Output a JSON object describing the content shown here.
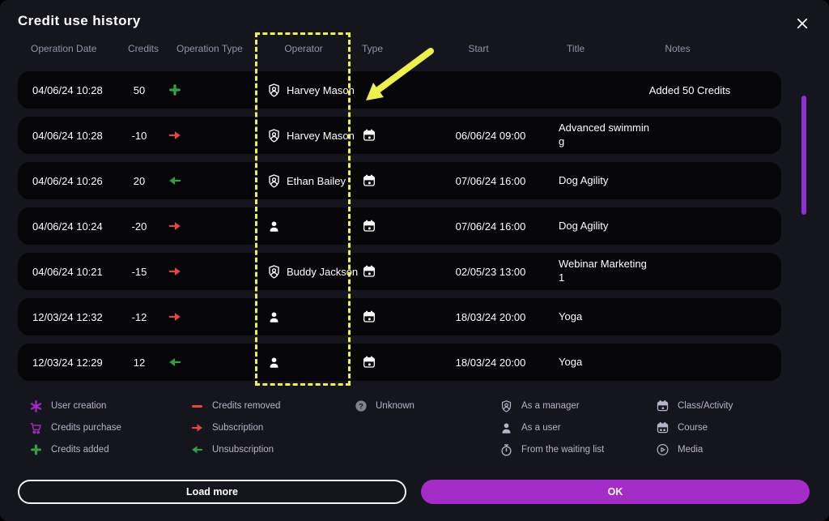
{
  "modal": {
    "title": "Credit use history",
    "close_icon": "close"
  },
  "table": {
    "headers": {
      "date": "Operation Date",
      "credits": "Credits",
      "operation_type": "Operation Type",
      "operator": "Operator",
      "type": "Type",
      "start": "Start",
      "title": "Title",
      "notes": "Notes"
    },
    "rows": [
      {
        "date": "04/06/24 10:28",
        "credits": "50",
        "op_icon": "credits-added",
        "operator_icon": "as-manager",
        "operator": "Harvey Mason",
        "type_icon": "",
        "start": "",
        "title": "",
        "notes": "Added 50 Credits"
      },
      {
        "date": "04/06/24 10:28",
        "credits": "-10",
        "op_icon": "subscription",
        "operator_icon": "as-manager",
        "operator": "Harvey Mason",
        "type_icon": "class-activity",
        "start": "06/06/24 09:00",
        "title": "Advanced swimming",
        "notes": ""
      },
      {
        "date": "04/06/24 10:26",
        "credits": "20",
        "op_icon": "unsubscription",
        "operator_icon": "as-manager",
        "operator": "Ethan Bailey",
        "type_icon": "class-activity",
        "start": "07/06/24 16:00",
        "title": "Dog Agility",
        "notes": ""
      },
      {
        "date": "04/06/24 10:24",
        "credits": "-20",
        "op_icon": "subscription",
        "operator_icon": "as-user",
        "operator": "",
        "type_icon": "class-activity",
        "start": "07/06/24 16:00",
        "title": "Dog Agility",
        "notes": ""
      },
      {
        "date": "04/06/24 10:21",
        "credits": "-15",
        "op_icon": "subscription",
        "operator_icon": "as-manager",
        "operator": "Buddy Jackson",
        "type_icon": "class-activity",
        "start": "02/05/23 13:00",
        "title": "Webinar Marketing 1",
        "notes": ""
      },
      {
        "date": "12/03/24 12:32",
        "credits": "-12",
        "op_icon": "subscription",
        "operator_icon": "as-user",
        "operator": "",
        "type_icon": "class-activity",
        "start": "18/03/24 20:00",
        "title": "Yoga",
        "notes": ""
      },
      {
        "date": "12/03/24 12:29",
        "credits": "12",
        "op_icon": "unsubscription",
        "operator_icon": "as-user",
        "operator": "",
        "type_icon": "class-activity",
        "start": "18/03/24 20:00",
        "title": "Yoga",
        "notes": ""
      }
    ]
  },
  "legend": {
    "groups": [
      {
        "items": [
          {
            "icon": "user-creation",
            "label": "User creation"
          },
          {
            "icon": "credits-purchase",
            "label": "Credits purchase"
          },
          {
            "icon": "credits-added",
            "label": "Credits added"
          }
        ]
      },
      {
        "items": [
          {
            "icon": "credits-removed",
            "label": "Credits removed"
          },
          {
            "icon": "subscription",
            "label": "Subscription"
          },
          {
            "icon": "unsubscription",
            "label": "Unsubscription"
          }
        ]
      },
      {
        "items": [
          {
            "icon": "unknown",
            "label": "Unknown"
          }
        ]
      },
      {
        "items": [
          {
            "icon": "as-manager",
            "label": "As a manager"
          },
          {
            "icon": "as-user",
            "label": "As a user"
          },
          {
            "icon": "waiting-list",
            "label": "From the waiting list"
          }
        ]
      },
      {
        "items": [
          {
            "icon": "class-activity",
            "label": "Class/Activity"
          },
          {
            "icon": "course",
            "label": "Course"
          },
          {
            "icon": "media",
            "label": "Media"
          }
        ]
      }
    ]
  },
  "buttons": {
    "load_more": "Load more",
    "ok": "OK"
  },
  "annotation": {
    "type": "dashed-box-and-arrow",
    "target": "Operator column",
    "color": "#eef04d"
  },
  "colors": {
    "background": "#15151e",
    "row_background": "#060609",
    "green": "#2fa144",
    "red": "#e8463b",
    "purple": "#a42cc4",
    "lavender": "#b7b3c8",
    "annotation_yellow": "#eef04d",
    "scrollbar_purple": "#9030d6",
    "ok_button": "#a42cc7"
  }
}
